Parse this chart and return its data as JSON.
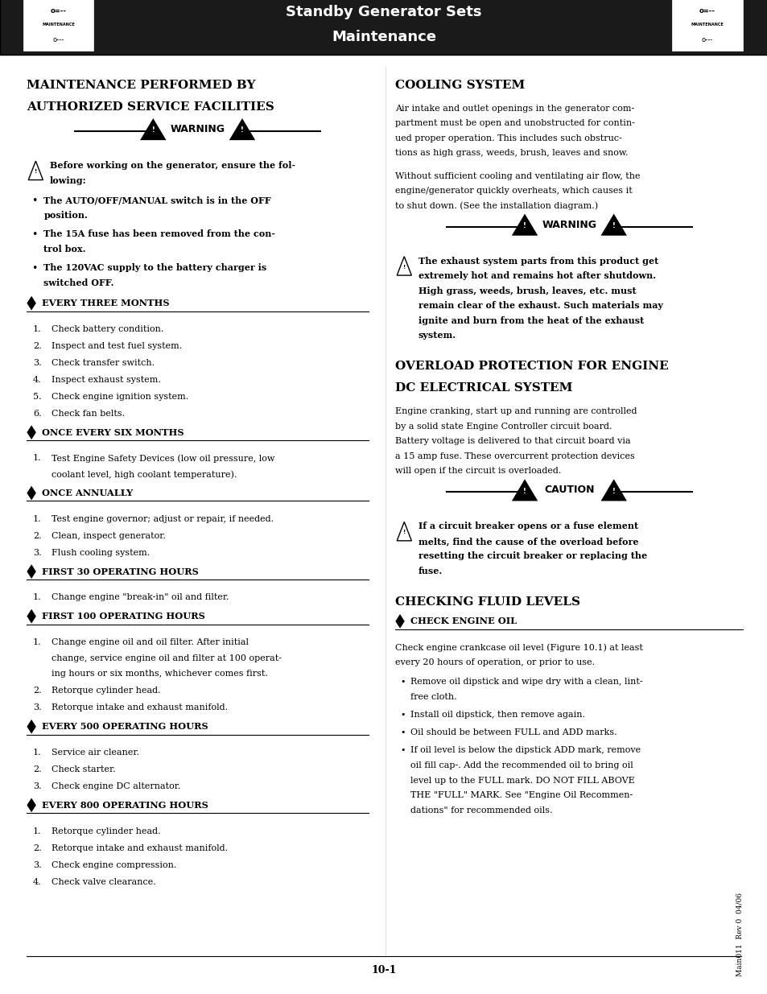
{
  "header_bg": "#1a1a1a",
  "header_title_line1": "Standby Generator Sets",
  "header_title_line2": "Maintenance",
  "page_bg": "#ffffff",
  "footer_page": "10-1",
  "footer_right": "Main011  Rev 0  04/06"
}
